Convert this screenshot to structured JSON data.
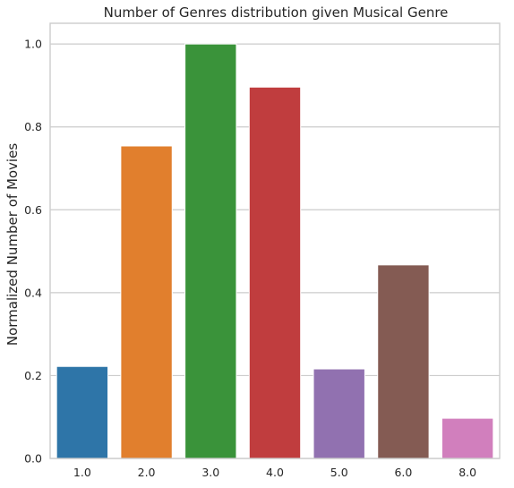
{
  "chart_data": {
    "type": "bar",
    "title": "Number of Genres distribution given Musical Genre",
    "xlabel": "",
    "ylabel": "Normalized Number of Movies",
    "categories": [
      "1.0",
      "2.0",
      "3.0",
      "4.0",
      "5.0",
      "6.0",
      "8.0"
    ],
    "values": [
      0.222,
      0.754,
      1.0,
      0.896,
      0.216,
      0.467,
      0.097
    ],
    "colors": [
      "#2e75a8",
      "#e17f2d",
      "#3a933a",
      "#c03d3e",
      "#9171b0",
      "#845b53",
      "#d17fbd"
    ],
    "ylim": [
      0,
      1.05
    ],
    "yticks": [
      "0.0",
      "0.2",
      "0.4",
      "0.6",
      "0.8",
      "1.0"
    ],
    "grid": true,
    "legend": "none"
  }
}
